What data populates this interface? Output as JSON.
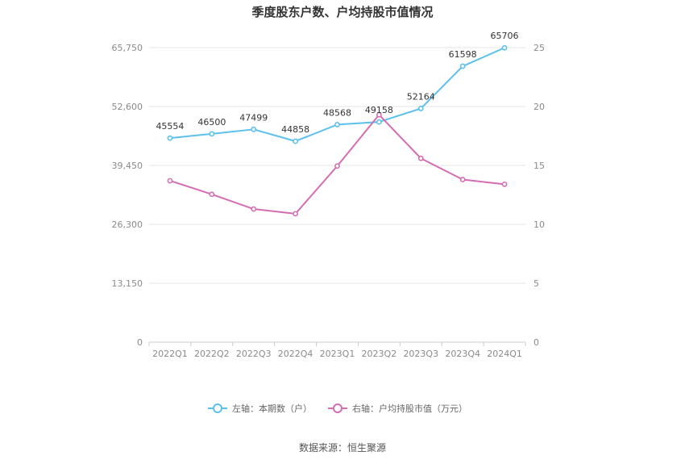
{
  "chart_data": {
    "type": "line",
    "title": "季度股东户数、户均持股市值情况",
    "categories": [
      "2022Q1",
      "2022Q2",
      "2022Q3",
      "2022Q4",
      "2023Q1",
      "2023Q2",
      "2023Q3",
      "2023Q4",
      "2024Q1"
    ],
    "left_axis": {
      "min": 0,
      "max": 65750,
      "ticks": [
        "0",
        "13,150",
        "26,300",
        "39,450",
        "52,600",
        "65,750"
      ],
      "tick_values": [
        0,
        13150,
        26300,
        39450,
        52600,
        65750
      ]
    },
    "right_axis": {
      "min": 0,
      "max": 25,
      "ticks": [
        "0",
        "5",
        "10",
        "15",
        "20",
        "25"
      ],
      "tick_values": [
        0,
        5,
        10,
        15,
        20,
        25
      ]
    },
    "series": [
      {
        "name": "左轴：本期数（户）",
        "axis": "left",
        "color": "#5bc0eb",
        "values": [
          45554,
          46500,
          47499,
          44858,
          48568,
          49158,
          52164,
          61598,
          65706
        ],
        "labels": [
          "45554",
          "46500",
          "47499",
          "44858",
          "48568",
          "49158",
          "52164",
          "61598",
          "65706"
        ]
      },
      {
        "name": "右轴：户均持股市值（万元）",
        "axis": "right",
        "color": "#d46db1",
        "values": [
          13.7,
          12.55,
          11.3,
          10.9,
          14.95,
          19.3,
          15.6,
          13.8,
          13.4
        ]
      }
    ],
    "grid": true,
    "legend_position": "bottom"
  },
  "footer": {
    "source": "数据来源：恒生聚源"
  }
}
